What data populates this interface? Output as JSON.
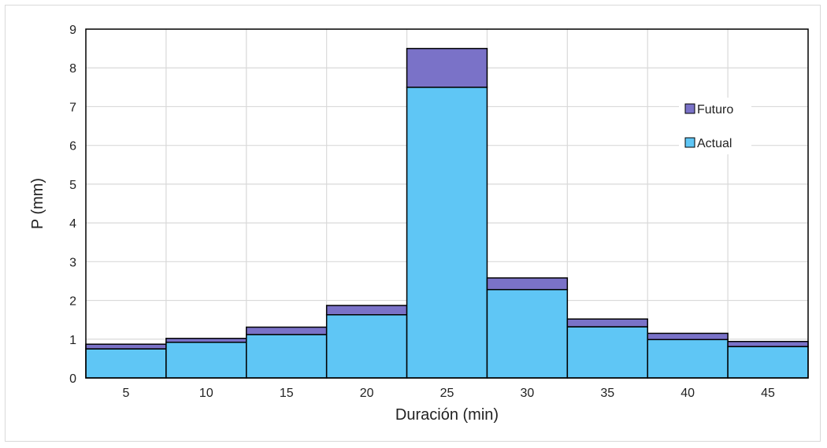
{
  "chart_data": {
    "type": "bar",
    "stacked": true,
    "categories": [
      "5",
      "10",
      "15",
      "20",
      "25",
      "30",
      "35",
      "40",
      "45"
    ],
    "series": [
      {
        "name": "Actual",
        "color": "#5FC6F5",
        "values": [
          0.75,
          0.92,
          1.12,
          1.63,
          7.5,
          2.28,
          1.32,
          0.99,
          0.81
        ]
      },
      {
        "name": "Futuro",
        "color": "#7A72C8",
        "values": [
          0.12,
          0.1,
          0.19,
          0.24,
          1.0,
          0.3,
          0.2,
          0.16,
          0.13
        ]
      }
    ],
    "xlabel": "Duración (min)",
    "ylabel": "P (mm)",
    "ylim": [
      0,
      9
    ],
    "yticks": [
      "0",
      "1",
      "2",
      "3",
      "4",
      "5",
      "6",
      "7",
      "8",
      "9"
    ],
    "grid": true,
    "legend": {
      "position": "right",
      "entries": [
        "Futuro",
        "Actual"
      ]
    }
  }
}
